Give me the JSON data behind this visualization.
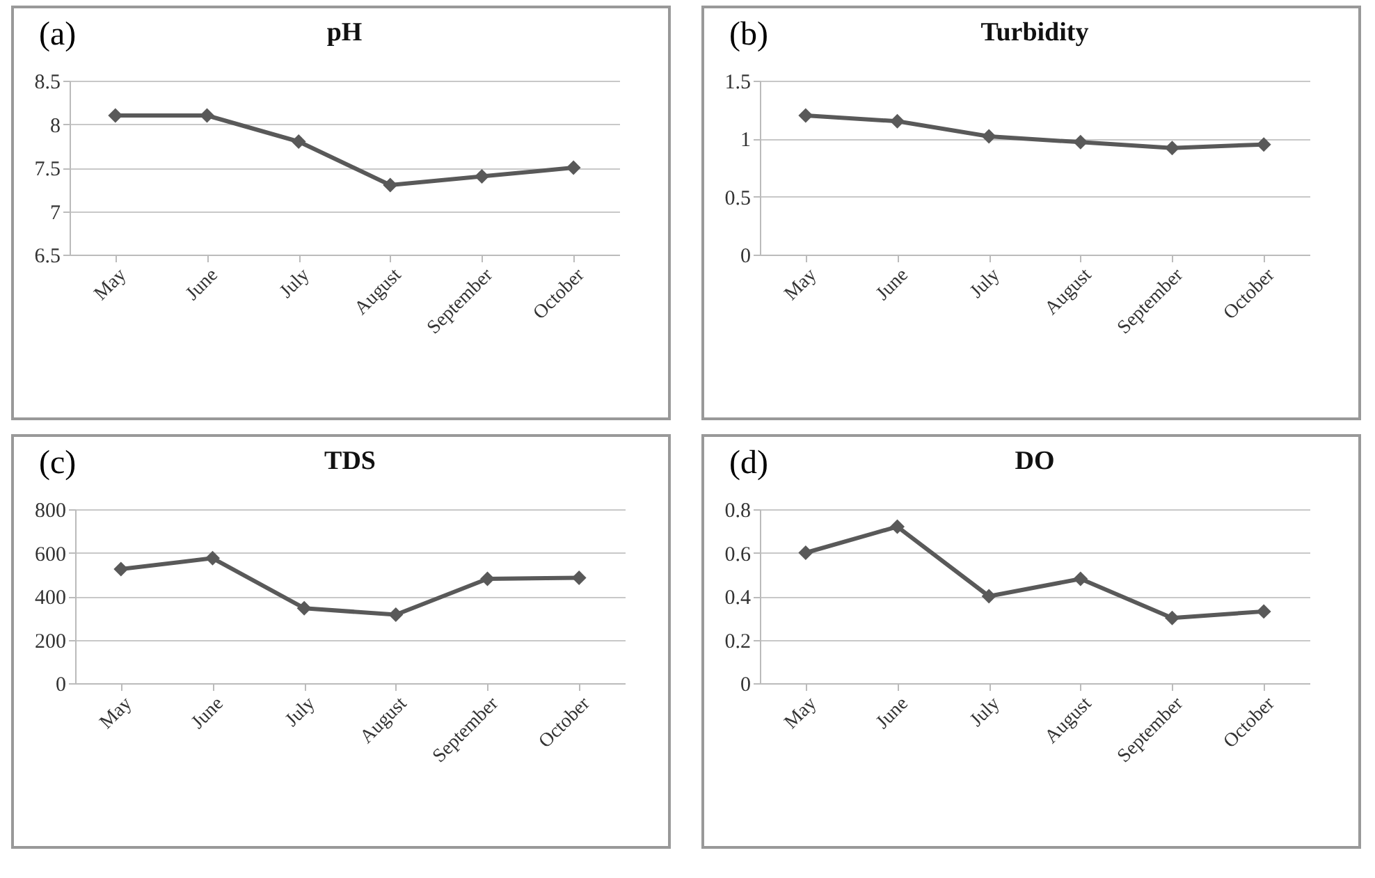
{
  "chart_data": [
    {
      "type": "line",
      "title": "pH",
      "annotations": [
        "(a)"
      ],
      "categories": [
        "May",
        "June",
        "July",
        "August",
        "September",
        "October"
      ],
      "series": [
        {
          "color": "#595959",
          "values": [
            8.1,
            8.1,
            7.8,
            7.3,
            7.4,
            7.5
          ]
        }
      ],
      "ylim": [
        6.5,
        8.5
      ],
      "yticks": [
        6.5,
        7,
        7.5,
        8,
        8.5
      ],
      "grid": "y",
      "marker": "diamond",
      "line_style": "solid"
    },
    {
      "type": "line",
      "title": "Turbidity",
      "annotations": [
        "(b)"
      ],
      "categories": [
        "May",
        "June",
        "July",
        "August",
        "September",
        "October"
      ],
      "series": [
        {
          "color": "#595959",
          "values": [
            1.2,
            1.15,
            1.02,
            0.97,
            0.92,
            0.95
          ]
        }
      ],
      "ylim": [
        0,
        1.5
      ],
      "yticks": [
        0,
        0.5,
        1,
        1.5
      ],
      "grid": "y",
      "marker": "diamond",
      "line_style": "solid"
    },
    {
      "type": "line",
      "title": "TDS",
      "annotations": [
        "(c)"
      ],
      "categories": [
        "May",
        "June",
        "July",
        "August",
        "September",
        "October"
      ],
      "series": [
        {
          "color": "#595959",
          "values": [
            525,
            575,
            345,
            315,
            480,
            485
          ]
        }
      ],
      "ylim": [
        0,
        800
      ],
      "yticks": [
        0,
        200,
        400,
        600,
        800
      ],
      "grid": "y",
      "marker": "diamond",
      "line_style": "solid"
    },
    {
      "type": "line",
      "title": "DO",
      "annotations": [
        "(d)"
      ],
      "categories": [
        "May",
        "June",
        "July",
        "August",
        "September",
        "October"
      ],
      "series": [
        {
          "color": "#595959",
          "values": [
            0.6,
            0.72,
            0.4,
            0.48,
            0.3,
            0.33
          ]
        }
      ],
      "ylim": [
        0,
        0.8
      ],
      "yticks": [
        0,
        0.2,
        0.4,
        0.6,
        0.8
      ],
      "grid": "y",
      "marker": "diamond",
      "line_style": "solid"
    }
  ]
}
